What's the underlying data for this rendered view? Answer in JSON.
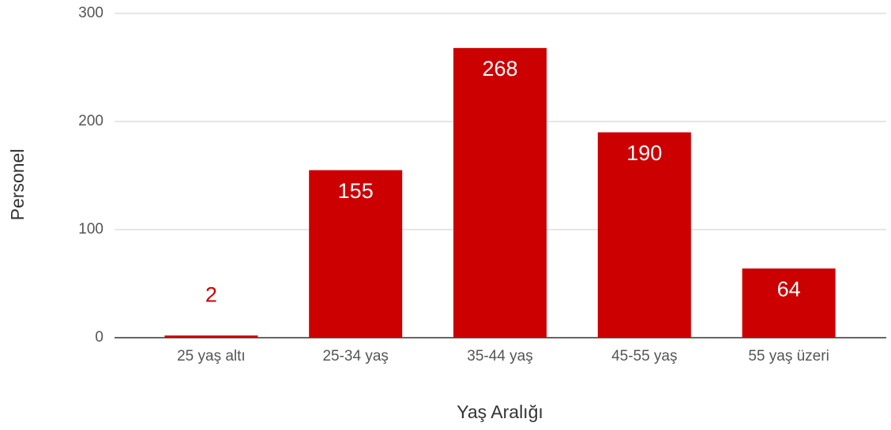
{
  "chart_data": {
    "type": "bar",
    "categories": [
      "25 yaş altı",
      "25-34 yaş",
      "35-44 yaş",
      "45-55 yaş",
      "55 yaş üzeri"
    ],
    "values": [
      2,
      155,
      268,
      190,
      64
    ],
    "color": "#cc0000",
    "xlabel": "Yaş Aralığı",
    "ylabel": "Personel",
    "ylim": [
      0,
      300
    ],
    "yticks": [
      0,
      100,
      200,
      300
    ],
    "grid": true
  }
}
